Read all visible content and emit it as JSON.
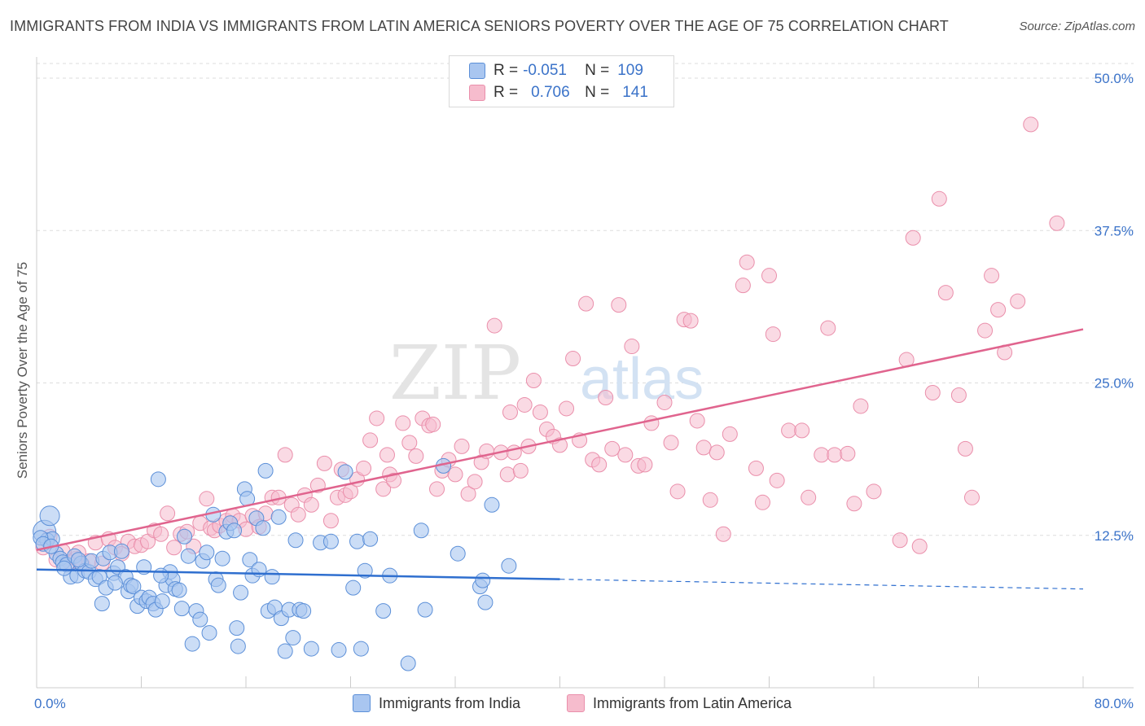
{
  "title": "IMMIGRANTS FROM INDIA VS IMMIGRANTS FROM LATIN AMERICA SENIORS POVERTY OVER THE AGE OF 75 CORRELATION CHART",
  "source": "Source: ZipAtlas.com",
  "watermark": {
    "zip": "ZIP",
    "atlas": "atlas"
  },
  "legend": {
    "rows": [
      {
        "r_label": "R =",
        "r_value": "-0.051",
        "n_label": "N =",
        "n_value": "109"
      },
      {
        "r_label": "R =",
        "r_value": "0.706",
        "n_label": "N =",
        "n_value": "141"
      }
    ]
  },
  "bottom_legend": {
    "india": "Immigrants from India",
    "latam": "Immigrants from Latin America"
  },
  "colors": {
    "india_fill": "#a9c6f0",
    "india_stroke": "#5b8fd8",
    "india_line": "#2f6fcf",
    "latam_fill": "#f6bccd",
    "latam_stroke": "#ea8fab",
    "latam_line": "#e0648e",
    "axis_label": "#3b73c9",
    "grid": "#dddddd"
  },
  "chart_data": {
    "type": "scatter",
    "title": "IMMIGRANTS FROM INDIA VS IMMIGRANTS FROM LATIN AMERICA SENIORS POVERTY OVER THE AGE OF 75 CORRELATION CHART",
    "xlabel": "",
    "ylabel": "Seniors Poverty Over the Age of 75",
    "xlim": [
      0,
      80
    ],
    "ylim": [
      0,
      52
    ],
    "x_tick_labels": [
      "0.0%",
      "80.0%"
    ],
    "y_ticks": [
      12.5,
      25.0,
      37.5,
      50.0
    ],
    "y_tick_labels": [
      "12.5%",
      "25.0%",
      "37.5%",
      "50.0%"
    ],
    "grid": "horizontal dashed",
    "legend_placement": "top-center",
    "series": [
      {
        "name": "Immigrants from India",
        "r": -0.051,
        "n": 109,
        "trend": {
          "x": [
            0,
            40
          ],
          "y": [
            9.7,
            8.9
          ],
          "dashed_to": [
            80,
            8.1
          ]
        },
        "points": [
          [
            0.6,
            12.8
          ],
          [
            1.0,
            14.1
          ],
          [
            0.8,
            12.1
          ],
          [
            1.2,
            12.2
          ],
          [
            1.5,
            11.0
          ],
          [
            1.8,
            10.6
          ],
          [
            2.0,
            10.3
          ],
          [
            2.3,
            10.1
          ],
          [
            2.6,
            9.1
          ],
          [
            2.9,
            10.8
          ],
          [
            3.1,
            9.2
          ],
          [
            3.4,
            10.2
          ],
          [
            3.7,
            9.6
          ],
          [
            4.0,
            9.5
          ],
          [
            4.2,
            10.4
          ],
          [
            4.5,
            8.9
          ],
          [
            4.8,
            9.1
          ],
          [
            5.1,
            10.6
          ],
          [
            5.0,
            6.9
          ],
          [
            5.3,
            8.2
          ],
          [
            5.6,
            11.1
          ],
          [
            5.9,
            9.4
          ],
          [
            6.2,
            9.9
          ],
          [
            6.5,
            11.2
          ],
          [
            6.8,
            9.1
          ],
          [
            7.0,
            7.9
          ],
          [
            7.2,
            8.4
          ],
          [
            7.4,
            8.3
          ],
          [
            7.7,
            6.7
          ],
          [
            8.0,
            7.4
          ],
          [
            8.2,
            9.9
          ],
          [
            8.4,
            7.1
          ],
          [
            8.6,
            7.4
          ],
          [
            8.9,
            6.9
          ],
          [
            9.1,
            6.4
          ],
          [
            9.3,
            17.1
          ],
          [
            9.6,
            7.1
          ],
          [
            9.9,
            8.4
          ],
          [
            10.2,
            9.5
          ],
          [
            10.4,
            8.9
          ],
          [
            10.6,
            8.1
          ],
          [
            10.9,
            8.0
          ],
          [
            11.1,
            6.5
          ],
          [
            11.3,
            12.4
          ],
          [
            11.6,
            10.8
          ],
          [
            11.9,
            3.6
          ],
          [
            12.2,
            6.3
          ],
          [
            12.5,
            5.6
          ],
          [
            12.7,
            10.4
          ],
          [
            13.0,
            11.1
          ],
          [
            13.2,
            4.5
          ],
          [
            13.5,
            14.2
          ],
          [
            13.7,
            8.9
          ],
          [
            13.9,
            8.4
          ],
          [
            14.2,
            10.6
          ],
          [
            14.5,
            12.8
          ],
          [
            14.8,
            13.5
          ],
          [
            15.1,
            12.9
          ],
          [
            15.4,
            3.4
          ],
          [
            15.3,
            4.9
          ],
          [
            15.6,
            7.8
          ],
          [
            15.9,
            16.3
          ],
          [
            16.1,
            15.5
          ],
          [
            16.3,
            10.5
          ],
          [
            16.5,
            9.2
          ],
          [
            16.8,
            13.9
          ],
          [
            17.0,
            9.7
          ],
          [
            17.3,
            13.1
          ],
          [
            17.5,
            17.8
          ],
          [
            17.7,
            6.3
          ],
          [
            18.0,
            9.1
          ],
          [
            18.2,
            6.6
          ],
          [
            18.5,
            14.0
          ],
          [
            18.7,
            5.7
          ],
          [
            19.0,
            3.0
          ],
          [
            19.3,
            6.4
          ],
          [
            19.6,
            4.1
          ],
          [
            19.8,
            12.1
          ],
          [
            20.1,
            6.4
          ],
          [
            20.4,
            6.3
          ],
          [
            21.0,
            3.2
          ],
          [
            21.7,
            11.9
          ],
          [
            22.5,
            12.0
          ],
          [
            23.1,
            3.1
          ],
          [
            23.6,
            17.7
          ],
          [
            24.2,
            8.2
          ],
          [
            24.5,
            12.0
          ],
          [
            24.8,
            3.2
          ],
          [
            25.1,
            9.6
          ],
          [
            25.5,
            12.2
          ],
          [
            26.5,
            6.3
          ],
          [
            27.0,
            9.2
          ],
          [
            28.4,
            2.0
          ],
          [
            29.4,
            12.9
          ],
          [
            29.7,
            6.4
          ],
          [
            31.1,
            18.2
          ],
          [
            32.2,
            11.0
          ],
          [
            33.9,
            8.3
          ],
          [
            34.1,
            8.8
          ],
          [
            34.3,
            7.0
          ],
          [
            34.8,
            15.0
          ],
          [
            36.1,
            10.0
          ],
          [
            0.3,
            12.3
          ],
          [
            0.5,
            11.8
          ],
          [
            1.1,
            11.6
          ],
          [
            2.1,
            9.8
          ],
          [
            3.2,
            10.5
          ],
          [
            6.0,
            8.6
          ],
          [
            9.5,
            9.2
          ]
        ]
      },
      {
        "name": "Immigrants from Latin America",
        "r": 0.706,
        "n": 141,
        "trend": {
          "x": [
            0,
            80
          ],
          "y": [
            11.3,
            29.4
          ]
        },
        "points": [
          [
            0.5,
            11.5
          ],
          [
            1.0,
            12.4
          ],
          [
            1.5,
            10.5
          ],
          [
            2.0,
            11.2
          ],
          [
            2.5,
            10.3
          ],
          [
            3.0,
            10.6
          ],
          [
            3.2,
            11.1
          ],
          [
            3.5,
            10.1
          ],
          [
            4.0,
            10.4
          ],
          [
            4.5,
            11.9
          ],
          [
            5.0,
            10.2
          ],
          [
            5.5,
            12.2
          ],
          [
            6.0,
            11.5
          ],
          [
            6.5,
            11.0
          ],
          [
            7.0,
            12.0
          ],
          [
            7.5,
            11.6
          ],
          [
            8.0,
            11.7
          ],
          [
            8.5,
            12.0
          ],
          [
            9.0,
            12.9
          ],
          [
            9.5,
            12.6
          ],
          [
            10.0,
            14.3
          ],
          [
            10.5,
            11.5
          ],
          [
            11.0,
            12.6
          ],
          [
            11.5,
            12.8
          ],
          [
            12.0,
            11.6
          ],
          [
            12.5,
            13.5
          ],
          [
            13.0,
            15.5
          ],
          [
            13.3,
            13.1
          ],
          [
            13.6,
            12.9
          ],
          [
            14.0,
            13.3
          ],
          [
            14.5,
            13.7
          ],
          [
            15.0,
            14.1
          ],
          [
            15.5,
            13.7
          ],
          [
            16.0,
            13.0
          ],
          [
            16.5,
            14.1
          ],
          [
            17.0,
            13.2
          ],
          [
            17.5,
            14.3
          ],
          [
            18.0,
            15.6
          ],
          [
            18.5,
            15.6
          ],
          [
            19.0,
            19.1
          ],
          [
            19.5,
            15.0
          ],
          [
            20.0,
            14.2
          ],
          [
            20.5,
            15.8
          ],
          [
            21.0,
            15.0
          ],
          [
            21.5,
            16.6
          ],
          [
            22.0,
            18.4
          ],
          [
            22.5,
            13.7
          ],
          [
            23.0,
            15.6
          ],
          [
            23.3,
            17.9
          ],
          [
            23.6,
            15.8
          ],
          [
            24.0,
            16.1
          ],
          [
            24.5,
            17.1
          ],
          [
            25.0,
            18.0
          ],
          [
            25.5,
            20.3
          ],
          [
            26.0,
            22.1
          ],
          [
            26.5,
            16.3
          ],
          [
            26.8,
            19.1
          ],
          [
            27.0,
            17.5
          ],
          [
            27.3,
            17.0
          ],
          [
            28.0,
            21.7
          ],
          [
            28.5,
            20.1
          ],
          [
            29.0,
            19.0
          ],
          [
            29.5,
            22.1
          ],
          [
            30.0,
            21.5
          ],
          [
            30.3,
            21.6
          ],
          [
            30.6,
            16.3
          ],
          [
            31.0,
            17.8
          ],
          [
            31.5,
            18.7
          ],
          [
            32.0,
            17.5
          ],
          [
            32.5,
            19.8
          ],
          [
            33.0,
            15.9
          ],
          [
            33.5,
            16.9
          ],
          [
            34.0,
            18.5
          ],
          [
            34.4,
            19.4
          ],
          [
            35.0,
            29.7
          ],
          [
            35.5,
            19.3
          ],
          [
            36.0,
            17.5
          ],
          [
            36.2,
            22.6
          ],
          [
            36.5,
            19.3
          ],
          [
            37.0,
            17.8
          ],
          [
            37.3,
            23.2
          ],
          [
            37.6,
            19.8
          ],
          [
            38.0,
            25.2
          ],
          [
            38.5,
            22.6
          ],
          [
            39.0,
            21.2
          ],
          [
            39.5,
            20.6
          ],
          [
            40.0,
            19.9
          ],
          [
            40.5,
            22.9
          ],
          [
            41.0,
            27.0
          ],
          [
            41.5,
            20.3
          ],
          [
            42.0,
            31.5
          ],
          [
            42.5,
            18.7
          ],
          [
            43.0,
            18.3
          ],
          [
            43.5,
            23.8
          ],
          [
            44.0,
            19.6
          ],
          [
            44.5,
            31.4
          ],
          [
            45.0,
            19.1
          ],
          [
            45.5,
            28.0
          ],
          [
            46.0,
            18.2
          ],
          [
            46.5,
            18.3
          ],
          [
            47.0,
            21.7
          ],
          [
            48.0,
            23.4
          ],
          [
            48.5,
            20.1
          ],
          [
            49.0,
            16.1
          ],
          [
            49.5,
            30.2
          ],
          [
            50.0,
            30.1
          ],
          [
            50.5,
            21.9
          ],
          [
            51.0,
            19.7
          ],
          [
            51.5,
            15.4
          ],
          [
            52.0,
            19.3
          ],
          [
            52.5,
            12.6
          ],
          [
            53.0,
            20.8
          ],
          [
            54.0,
            33.0
          ],
          [
            54.3,
            34.9
          ],
          [
            55.0,
            18.0
          ],
          [
            55.5,
            15.2
          ],
          [
            56.0,
            33.8
          ],
          [
            56.3,
            29.0
          ],
          [
            56.6,
            17.0
          ],
          [
            57.5,
            21.1
          ],
          [
            58.5,
            21.1
          ],
          [
            59.0,
            15.6
          ],
          [
            60.0,
            19.1
          ],
          [
            60.5,
            29.5
          ],
          [
            61.0,
            19.1
          ],
          [
            62.0,
            19.2
          ],
          [
            62.5,
            15.1
          ],
          [
            63.0,
            23.1
          ],
          [
            64.0,
            16.1
          ],
          [
            66.0,
            12.1
          ],
          [
            66.5,
            26.9
          ],
          [
            67.0,
            36.9
          ],
          [
            67.5,
            11.6
          ],
          [
            68.5,
            24.2
          ],
          [
            69.0,
            40.1
          ],
          [
            69.5,
            32.4
          ],
          [
            70.5,
            24.0
          ],
          [
            71.0,
            19.6
          ],
          [
            71.5,
            15.6
          ],
          [
            72.5,
            29.3
          ],
          [
            73.0,
            33.8
          ],
          [
            73.5,
            31.0
          ],
          [
            74.0,
            27.5
          ],
          [
            75.0,
            31.7
          ],
          [
            76.0,
            46.2
          ],
          [
            78.0,
            38.1
          ]
        ]
      }
    ]
  }
}
